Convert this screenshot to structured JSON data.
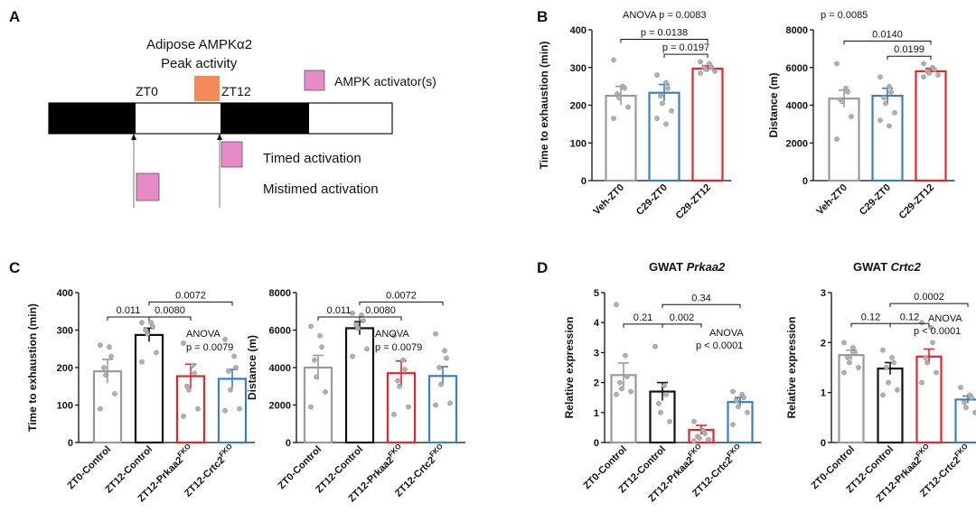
{
  "panels": {
    "A": {
      "letter": "A",
      "peak_title_line1": "Adipose AMPKα2",
      "peak_title_line2": "Peak activity",
      "zt0": "ZT0",
      "zt12": "ZT12",
      "legend": "AMPK activator(s)",
      "timed": "Timed activation",
      "mistimed": "Mistimed activation",
      "colors": {
        "peak": "#f4895a",
        "activator": "#e68ac8"
      }
    },
    "B": {
      "letter": "B"
    },
    "C": {
      "letter": "C"
    },
    "D": {
      "letter": "D"
    }
  },
  "colors": {
    "grey": "#9a9a9a",
    "black": "#111111",
    "red": "#e4252a",
    "blue": "#3b7fc1",
    "point": "#b0b0b0"
  },
  "chart_data": [
    {
      "id": "B1",
      "type": "bar",
      "ylabel": "Time to exhaustion (min)",
      "categories": [
        "Veh-ZT0",
        "C29-ZT0",
        "C29-ZT12"
      ],
      "values": [
        225,
        233,
        297
      ],
      "errors": [
        25,
        22,
        8
      ],
      "colors": [
        "grey",
        "blue",
        "red"
      ],
      "points": [
        [
          320,
          250,
          245,
          230,
          220,
          195,
          165
        ],
        [
          280,
          260,
          245,
          225,
          205,
          185,
          165,
          150
        ],
        [
          315,
          310,
          300,
          300,
          295,
          290,
          285
        ]
      ],
      "ylim": [
        0,
        400
      ],
      "yticks": [
        0,
        100,
        200,
        300,
        400
      ],
      "annotations": [
        {
          "text": "ANOVA p = 0.0083"
        }
      ],
      "comparisons": [
        {
          "label": "p = 0.0138",
          "from": 0,
          "to": 2,
          "y": 375
        },
        {
          "label": "p = 0.0197",
          "from": 1,
          "to": 2,
          "y": 335
        }
      ]
    },
    {
      "id": "B2",
      "type": "bar",
      "ylabel": "Distance (m)",
      "categories": [
        "Veh-ZT0",
        "C29-ZT0",
        "C29-ZT12"
      ],
      "values": [
        4350,
        4500,
        5800
      ],
      "errors": [
        450,
        400,
        150
      ],
      "colors": [
        "grey",
        "blue",
        "red"
      ],
      "points": [
        [
          6200,
          4900,
          4700,
          4300,
          4200,
          3400,
          2200
        ],
        [
          5500,
          5000,
          4700,
          4400,
          4100,
          3600,
          3200,
          2900
        ],
        [
          6200,
          6000,
          5900,
          5800,
          5700,
          5600,
          5500
        ]
      ],
      "ylim": [
        0,
        8000
      ],
      "yticks": [
        0,
        2000,
        4000,
        6000,
        8000
      ],
      "annotations": [
        {
          "text": "p = 0.0085"
        }
      ],
      "comparisons": [
        {
          "label": "0.0140",
          "from": 0,
          "to": 2,
          "y": 7400
        },
        {
          "label": "0.0199",
          "from": 1,
          "to": 2,
          "y": 6600
        }
      ]
    },
    {
      "id": "C1",
      "type": "bar",
      "ylabel": "Time to exhaustion (min)",
      "categories": [
        "ZT0-Control",
        "ZT12-Control",
        "ZT12-Prkaa2",
        "ZT12-Crtc2"
      ],
      "superscripts": [
        "",
        "",
        "FKO",
        "FKO"
      ],
      "values": [
        190,
        287,
        177,
        170
      ],
      "errors": [
        32,
        18,
        32,
        25
      ],
      "colors": [
        "grey",
        "black",
        "red",
        "blue"
      ],
      "points": [
        [
          260,
          255,
          230,
          200,
          180,
          130,
          90
        ],
        [
          320,
          320,
          310,
          300,
          290,
          240,
          215
        ],
        [
          265,
          205,
          185,
          150,
          140,
          90,
          70
        ],
        [
          275,
          230,
          200,
          190,
          140,
          90,
          85
        ]
      ],
      "ylim": [
        0,
        400
      ],
      "yticks": [
        0,
        100,
        200,
        300,
        400
      ],
      "annotations": [
        {
          "text": "ANOVA"
        },
        {
          "text": "p = 0.0079"
        }
      ],
      "comparisons": [
        {
          "label": "0.011",
          "from": 0,
          "to": 1,
          "y": 335
        },
        {
          "label": "0.0080",
          "from": 1,
          "to": 2,
          "y": 335
        },
        {
          "label": "0.0072",
          "from": 1,
          "to": 3,
          "y": 375
        }
      ]
    },
    {
      "id": "C2",
      "type": "bar",
      "ylabel": "Distance (m)",
      "categories": [
        "ZT0-Control",
        "ZT12-Control",
        "ZT12-Prkaa2",
        "ZT12-Crtc2"
      ],
      "superscripts": [
        "",
        "",
        "FKO",
        "FKO"
      ],
      "values": [
        4000,
        6100,
        3700,
        3550
      ],
      "errors": [
        650,
        350,
        650,
        500
      ],
      "colors": [
        "grey",
        "black",
        "red",
        "blue"
      ],
      "points": [
        [
          6200,
          5700,
          5100,
          4400,
          3500,
          2700,
          1900
        ],
        [
          6900,
          6800,
          6500,
          6300,
          6100,
          5000,
          4600
        ],
        [
          5700,
          4400,
          3900,
          3300,
          3000,
          1900,
          1500
        ],
        [
          5800,
          4900,
          4500,
          4000,
          3100,
          2100,
          2000
        ]
      ],
      "ylim": [
        0,
        8000
      ],
      "yticks": [
        0,
        2000,
        4000,
        6000,
        8000
      ],
      "annotations": [
        {
          "text": "ANOVA"
        },
        {
          "text": "p = 0.0079"
        }
      ],
      "comparisons": [
        {
          "label": "0.011",
          "from": 0,
          "to": 1,
          "y": 6700
        },
        {
          "label": "0.0080",
          "from": 1,
          "to": 2,
          "y": 6700
        },
        {
          "label": "0.0072",
          "from": 1,
          "to": 3,
          "y": 7500
        }
      ]
    },
    {
      "id": "D1",
      "type": "bar",
      "title_prefix": "GWAT ",
      "title_gene": "Prkaa2",
      "ylabel": "Relative expression",
      "categories": [
        "ZT0-Control",
        "ZT12-Control",
        "ZT12-Prkaa2",
        "ZT12-Crtc2"
      ],
      "superscripts": [
        "",
        "",
        "FKO",
        "FKO"
      ],
      "values": [
        2.25,
        1.7,
        0.42,
        1.35
      ],
      "errors": [
        0.4,
        0.3,
        0.15,
        0.15
      ],
      "colors": [
        "grey",
        "black",
        "red",
        "blue"
      ],
      "points": [
        [
          4.6,
          2.9,
          2.2,
          2.0,
          1.8,
          1.7,
          1.6
        ],
        [
          3.2,
          1.9,
          1.6,
          1.3,
          1.0,
          0.7
        ],
        [
          0.7,
          0.4,
          0.3,
          0.2,
          0.15,
          0.1,
          0.05
        ],
        [
          1.7,
          1.6,
          1.5,
          1.4,
          1.2,
          1.0,
          0.6
        ]
      ],
      "ylim": [
        0,
        5
      ],
      "yticks": [
        0,
        1,
        2,
        3,
        4,
        5
      ],
      "annotations": [
        {
          "text": "ANOVA"
        },
        {
          "text": "p < 0.0001"
        }
      ],
      "comparisons": [
        {
          "label": "0.21",
          "from": 0,
          "to": 1,
          "y": 3.95
        },
        {
          "label": "0.002",
          "from": 1,
          "to": 2,
          "y": 3.95
        },
        {
          "label": "0.34",
          "from": 1,
          "to": 3,
          "y": 4.6
        }
      ]
    },
    {
      "id": "D2",
      "type": "bar",
      "title_prefix": "GWAT ",
      "title_gene": "Crtc2",
      "ylabel": "Relative expression",
      "categories": [
        "ZT0-Control",
        "ZT12-Control",
        "ZT12-Prkaa2",
        "ZT12-Crtc2"
      ],
      "superscripts": [
        "",
        "",
        "FKO",
        "FKO"
      ],
      "values": [
        1.75,
        1.48,
        1.72,
        0.86
      ],
      "errors": [
        0.1,
        0.12,
        0.15,
        0.07
      ],
      "colors": [
        "grey",
        "black",
        "red",
        "blue"
      ],
      "points": [
        [
          2.0,
          1.9,
          1.8,
          1.7,
          1.6,
          1.5,
          1.4
        ],
        [
          1.85,
          1.7,
          1.6,
          1.5,
          1.2,
          1.05,
          0.95
        ],
        [
          2.4,
          2.3,
          2.0,
          1.7,
          1.6,
          1.4,
          1.2
        ],
        [
          1.1,
          0.95,
          0.9,
          0.8,
          0.7,
          0.6
        ]
      ],
      "ylim": [
        0,
        3
      ],
      "yticks": [
        0,
        1,
        2,
        3
      ],
      "annotations": [
        {
          "text": "ANOVA"
        },
        {
          "text": "p < 0.0001"
        }
      ],
      "comparisons": [
        {
          "label": "0.12",
          "from": 0,
          "to": 1,
          "y": 2.38
        },
        {
          "label": "0.12",
          "from": 1,
          "to": 2,
          "y": 2.38
        },
        {
          "label": "0.0002",
          "from": 1,
          "to": 3,
          "y": 2.78
        }
      ]
    }
  ]
}
